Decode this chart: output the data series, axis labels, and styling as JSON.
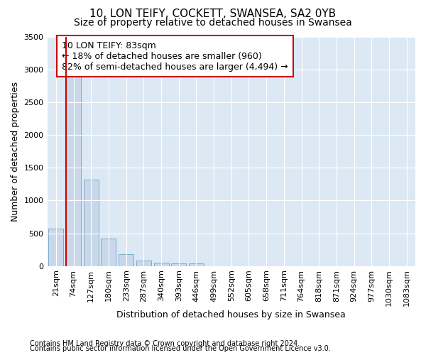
{
  "title": "10, LON TEIFY, COCKETT, SWANSEA, SA2 0YB",
  "subtitle": "Size of property relative to detached houses in Swansea",
  "xlabel": "Distribution of detached houses by size in Swansea",
  "ylabel": "Number of detached properties",
  "footnote1": "Contains HM Land Registry data © Crown copyright and database right 2024.",
  "footnote2": "Contains public sector information licensed under the Open Government Licence v3.0.",
  "annotation_line1": "10 LON TEIFY: 83sqm",
  "annotation_line2": "← 18% of detached houses are smaller (960)",
  "annotation_line3": "82% of semi-detached houses are larger (4,494) →",
  "bar_categories": [
    "21sqm",
    "74sqm",
    "127sqm",
    "180sqm",
    "233sqm",
    "287sqm",
    "340sqm",
    "393sqm",
    "446sqm",
    "499sqm",
    "552sqm",
    "605sqm",
    "658sqm",
    "711sqm",
    "764sqm",
    "818sqm",
    "871sqm",
    "924sqm",
    "977sqm",
    "1030sqm",
    "1083sqm"
  ],
  "bar_values": [
    570,
    2910,
    1320,
    415,
    185,
    80,
    50,
    40,
    35,
    0,
    0,
    0,
    0,
    0,
    0,
    0,
    0,
    0,
    0,
    0,
    0
  ],
  "bar_color": "#c8d8ea",
  "bar_edge_color": "#7aaac8",
  "marker_color": "#cc0000",
  "ylim": [
    0,
    3500
  ],
  "yticks": [
    0,
    500,
    1000,
    1500,
    2000,
    2500,
    3000,
    3500
  ],
  "figure_bg": "#ffffff",
  "plot_bg": "#dce9f5",
  "grid_color": "#ffffff",
  "title_fontsize": 11,
  "subtitle_fontsize": 10,
  "axis_label_fontsize": 9,
  "tick_fontsize": 8,
  "annotation_fontsize": 9,
  "footnote_fontsize": 7
}
